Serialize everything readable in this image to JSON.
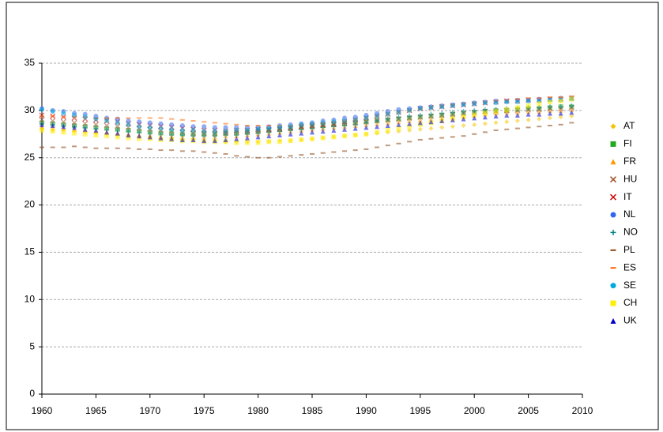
{
  "chart_data": {
    "type": "scatter",
    "x": [
      1960,
      1961,
      1962,
      1963,
      1964,
      1965,
      1966,
      1967,
      1968,
      1969,
      1970,
      1971,
      1972,
      1973,
      1974,
      1975,
      1976,
      1977,
      1978,
      1979,
      1980,
      1981,
      1982,
      1983,
      1984,
      1985,
      1986,
      1987,
      1988,
      1989,
      1990,
      1991,
      1992,
      1993,
      1994,
      1995,
      1996,
      1997,
      1998,
      1999,
      2000,
      2001,
      2002,
      2003,
      2004,
      2005,
      2006,
      2007,
      2008,
      2009
    ],
    "xlim": [
      1960,
      2010
    ],
    "xticks": [
      1960,
      1965,
      1970,
      1975,
      1980,
      1985,
      1990,
      1995,
      2000,
      2005,
      2010
    ],
    "ylim": [
      0,
      35
    ],
    "yticks": [
      0,
      5,
      10,
      15,
      20,
      25,
      30,
      35
    ],
    "grid": true,
    "legend": "right",
    "series": [
      {
        "name": "AT",
        "color": "#f5c400",
        "marker": "diamond",
        "values": [
          28.0,
          27.9,
          27.9,
          27.8,
          27.7,
          27.6,
          27.5,
          27.4,
          27.3,
          27.2,
          27.1,
          27.0,
          27.0,
          26.9,
          26.9,
          26.8,
          26.8,
          26.7,
          26.7,
          26.7,
          26.7,
          26.7,
          26.8,
          26.8,
          26.9,
          27.0,
          27.1,
          27.2,
          27.3,
          27.4,
          27.5,
          27.6,
          27.7,
          27.8,
          27.9,
          28.0,
          28.1,
          28.2,
          28.3,
          28.4,
          28.5,
          28.6,
          28.7,
          28.8,
          28.9,
          29.0,
          29.1,
          29.2,
          29.3,
          29.4
        ]
      },
      {
        "name": "FI",
        "color": "#22aa22",
        "marker": "square",
        "values": [
          28.7,
          28.6,
          28.5,
          28.4,
          28.3,
          28.2,
          28.1,
          28.0,
          27.9,
          27.8,
          27.7,
          27.6,
          27.6,
          27.5,
          27.5,
          27.5,
          27.5,
          27.6,
          27.6,
          27.7,
          27.8,
          27.9,
          28.0,
          28.1,
          28.2,
          28.3,
          28.4,
          28.5,
          28.6,
          28.7,
          28.8,
          28.9,
          29.0,
          29.1,
          29.2,
          29.3,
          29.4,
          29.5,
          29.6,
          29.7,
          29.8,
          29.9,
          30.0,
          30.0,
          30.1,
          30.2,
          30.2,
          30.3,
          30.4,
          30.4
        ]
      },
      {
        "name": "FR",
        "color": "#ff9900",
        "marker": "triangle",
        "values": [
          28.3,
          28.2,
          28.1,
          28.0,
          27.9,
          27.8,
          27.7,
          27.6,
          27.5,
          27.4,
          27.4,
          27.3,
          27.3,
          27.2,
          27.2,
          27.2,
          27.2,
          27.3,
          27.3,
          27.4,
          27.5,
          27.6,
          27.7,
          27.8,
          27.9,
          28.0,
          28.1,
          28.2,
          28.3,
          28.4,
          28.5,
          28.6,
          28.7,
          28.8,
          28.9,
          29.0,
          29.1,
          29.2,
          29.3,
          29.4,
          29.5,
          29.6,
          29.7,
          29.8,
          29.8,
          29.9,
          29.9,
          30.0,
          30.0,
          30.1
        ]
      },
      {
        "name": "HU",
        "color": "#a0522d",
        "marker": "x",
        "values": [
          29.0,
          28.9,
          28.8,
          28.7,
          28.6,
          28.5,
          28.4,
          28.3,
          28.2,
          28.1,
          28.0,
          27.9,
          27.8,
          27.7,
          27.6,
          27.6,
          27.6,
          27.6,
          27.7,
          27.7,
          27.8,
          27.9,
          28.0,
          28.1,
          28.2,
          28.3,
          28.4,
          28.5,
          28.6,
          28.7,
          28.8,
          28.9,
          29.0,
          29.1,
          29.2,
          29.3,
          29.4,
          29.5,
          29.6,
          29.7,
          29.8,
          29.9,
          29.9,
          30.0,
          30.0,
          30.1,
          30.1,
          30.2,
          30.2,
          30.3
        ]
      },
      {
        "name": "IT",
        "color": "#cc0000",
        "marker": "x",
        "values": [
          29.5,
          29.4,
          29.3,
          29.2,
          29.1,
          29.0,
          28.9,
          28.8,
          28.6,
          28.5,
          28.4,
          28.3,
          28.2,
          28.1,
          28.0,
          27.9,
          27.9,
          27.8,
          27.9,
          27.9,
          28.0,
          28.0,
          28.1,
          28.2,
          28.3,
          28.4,
          28.5,
          28.6,
          28.8,
          29.0,
          29.2,
          29.4,
          29.6,
          29.8,
          30.0,
          30.2,
          30.3,
          30.4,
          30.5,
          30.6,
          30.7,
          30.8,
          30.9,
          31.0,
          31.0,
          31.1,
          31.1,
          31.2,
          31.2,
          31.3
        ]
      },
      {
        "name": "NL",
        "color": "#3366ee",
        "marker": "circle",
        "values": [
          30.2,
          30.0,
          29.9,
          29.7,
          29.6,
          29.4,
          29.2,
          29.1,
          28.9,
          28.8,
          28.7,
          28.6,
          28.5,
          28.4,
          28.3,
          28.3,
          28.2,
          28.2,
          28.2,
          28.2,
          28.2,
          28.3,
          28.4,
          28.5,
          28.6,
          28.7,
          28.9,
          29.0,
          29.2,
          29.3,
          29.5,
          29.7,
          29.9,
          30.1,
          30.2,
          30.3,
          30.4,
          30.5,
          30.6,
          30.7,
          30.8,
          30.9,
          31.0,
          31.0,
          31.1,
          31.1,
          31.2,
          31.2,
          31.3,
          31.3
        ]
      },
      {
        "name": "NO",
        "color": "#008080",
        "marker": "plus",
        "values": [
          28.6,
          28.5,
          28.4,
          28.3,
          28.2,
          28.1,
          28.0,
          27.9,
          27.8,
          27.7,
          27.6,
          27.5,
          27.4,
          27.4,
          27.3,
          27.3,
          27.3,
          27.4,
          27.4,
          27.5,
          27.6,
          27.7,
          27.8,
          27.9,
          28.0,
          28.1,
          28.2,
          28.3,
          28.4,
          28.5,
          28.7,
          28.9,
          29.1,
          29.3,
          29.4,
          29.5,
          29.6,
          29.7,
          29.8,
          29.9,
          30.0,
          30.1,
          30.1,
          30.2,
          30.2,
          30.3,
          30.3,
          30.4,
          30.4,
          30.5
        ]
      },
      {
        "name": "PL",
        "color": "#8b4513",
        "marker": "dash",
        "values": [
          26.1,
          26.1,
          26.1,
          26.2,
          26.1,
          26.0,
          26.0,
          26.0,
          26.0,
          25.9,
          25.9,
          25.8,
          25.8,
          25.7,
          25.7,
          25.6,
          25.5,
          25.4,
          25.2,
          25.1,
          25.0,
          25.0,
          25.1,
          25.2,
          25.3,
          25.4,
          25.5,
          25.6,
          25.7,
          25.8,
          25.9,
          26.1,
          26.3,
          26.5,
          26.7,
          26.9,
          27.0,
          27.1,
          27.2,
          27.3,
          27.5,
          27.7,
          27.9,
          28.0,
          28.1,
          28.2,
          28.3,
          28.4,
          28.5,
          28.7
        ]
      },
      {
        "name": "ES",
        "color": "#ff6600",
        "marker": "dash",
        "values": [
          29.4,
          29.4,
          29.3,
          29.3,
          29.3,
          29.2,
          29.2,
          29.2,
          29.2,
          29.2,
          29.2,
          29.2,
          29.1,
          29.0,
          28.9,
          28.8,
          28.7,
          28.6,
          28.5,
          28.4,
          28.4,
          28.4,
          28.4,
          28.4,
          28.5,
          28.6,
          28.7,
          28.8,
          28.9,
          29.0,
          29.2,
          29.4,
          29.6,
          29.8,
          30.0,
          30.2,
          30.4,
          30.5,
          30.6,
          30.7,
          30.8,
          30.9,
          31.0,
          31.1,
          31.2,
          31.3,
          31.3,
          31.4,
          31.4,
          31.5
        ]
      },
      {
        "name": "SE",
        "color": "#00aadd",
        "marker": "circle",
        "values": [
          30.1,
          29.9,
          29.7,
          29.5,
          29.3,
          29.1,
          28.9,
          28.7,
          28.5,
          28.3,
          28.2,
          28.1,
          28.0,
          27.9,
          27.9,
          27.8,
          27.8,
          27.8,
          27.9,
          27.9,
          28.0,
          28.1,
          28.2,
          28.3,
          28.5,
          28.6,
          28.7,
          28.8,
          28.9,
          29.0,
          29.2,
          29.4,
          29.6,
          29.8,
          30.0,
          30.2,
          30.3,
          30.4,
          30.5,
          30.6,
          30.7,
          30.8,
          30.8,
          30.9,
          30.9,
          31.0,
          31.0,
          31.1,
          31.1,
          31.2
        ]
      },
      {
        "name": "CH",
        "color": "#ffee00",
        "marker": "square",
        "values": [
          27.9,
          27.8,
          27.7,
          27.6,
          27.5,
          27.4,
          27.3,
          27.2,
          27.1,
          27.0,
          27.0,
          26.9,
          26.9,
          26.8,
          26.8,
          26.7,
          26.7,
          26.7,
          26.6,
          26.6,
          26.6,
          26.7,
          26.7,
          26.8,
          26.9,
          27.0,
          27.1,
          27.2,
          27.3,
          27.4,
          27.5,
          27.7,
          27.9,
          28.1,
          28.3,
          28.5,
          28.7,
          28.9,
          29.1,
          29.3,
          29.5,
          29.7,
          29.9,
          30.1,
          30.3,
          30.5,
          30.7,
          30.9,
          31.0,
          31.2
        ]
      },
      {
        "name": "UK",
        "color": "#0000cc",
        "marker": "triangle",
        "values": [
          28.5,
          28.4,
          28.3,
          28.2,
          28.0,
          27.9,
          27.7,
          27.6,
          27.4,
          27.3,
          27.2,
          27.1,
          27.0,
          26.9,
          26.9,
          26.8,
          26.8,
          26.9,
          27.0,
          27.1,
          27.2,
          27.3,
          27.4,
          27.5,
          27.6,
          27.7,
          27.8,
          27.9,
          28.0,
          28.1,
          28.2,
          28.3,
          28.4,
          28.5,
          28.6,
          28.7,
          28.8,
          28.9,
          29.0,
          29.1,
          29.2,
          29.3,
          29.4,
          29.5,
          29.5,
          29.6,
          29.6,
          29.7,
          29.7,
          29.8
        ]
      }
    ]
  }
}
